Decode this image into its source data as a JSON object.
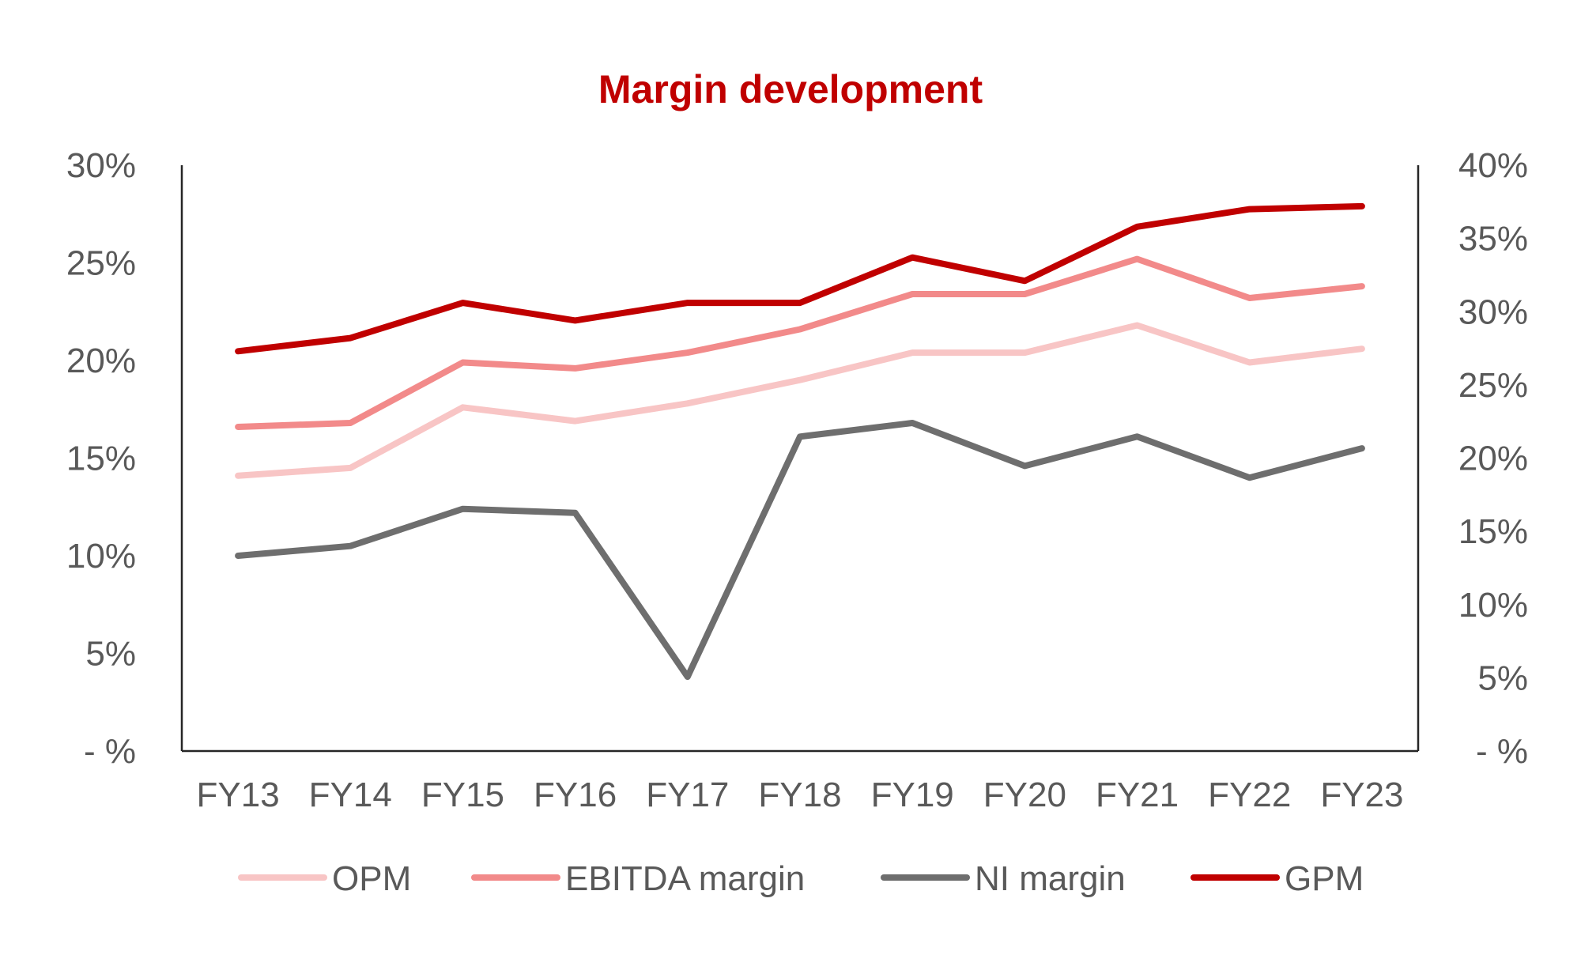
{
  "chart_data": {
    "type": "line",
    "title": "Margin development",
    "categories": [
      "FY13",
      "FY14",
      "FY15",
      "FY16",
      "FY17",
      "FY18",
      "FY19",
      "FY20",
      "FY21",
      "FY22",
      "FY23"
    ],
    "y_left": {
      "min": 0,
      "max": 30,
      "ticks": [
        0,
        5,
        10,
        15,
        20,
        25,
        30
      ],
      "tick_labels": [
        "- %",
        "5%",
        "10%",
        "15%",
        "20%",
        "25%",
        "30%"
      ]
    },
    "y_right": {
      "min": 0,
      "max": 40,
      "ticks": [
        0,
        5,
        10,
        15,
        20,
        25,
        30,
        35,
        40
      ],
      "tick_labels": [
        "- %",
        "5%",
        "10%",
        "15%",
        "20%",
        "25%",
        "30%",
        "35%",
        "40%"
      ]
    },
    "series": [
      {
        "name": "OPM",
        "axis": "left",
        "color": "#f8c5c5",
        "values": [
          14.1,
          14.5,
          17.6,
          16.9,
          17.8,
          19.0,
          20.4,
          20.4,
          21.8,
          19.9,
          20.6
        ]
      },
      {
        "name": "EBITDA margin",
        "axis": "left",
        "color": "#f28a8a",
        "values": [
          16.6,
          16.8,
          19.9,
          19.6,
          20.4,
          21.6,
          23.4,
          23.4,
          25.2,
          23.2,
          23.8
        ]
      },
      {
        "name": "NI margin",
        "axis": "left",
        "color": "#6e6e6e",
        "values": [
          10.0,
          10.5,
          12.4,
          12.2,
          3.8,
          16.1,
          16.8,
          14.6,
          16.1,
          14.0,
          15.5
        ]
      },
      {
        "name": "GPM",
        "axis": "right",
        "color": "#c00000",
        "values": [
          27.3,
          28.2,
          30.6,
          29.4,
          30.6,
          30.6,
          33.7,
          32.1,
          35.8,
          37.0,
          37.2
        ]
      }
    ],
    "legend_position": "bottom",
    "grid": false,
    "title_color": "#c00000"
  }
}
